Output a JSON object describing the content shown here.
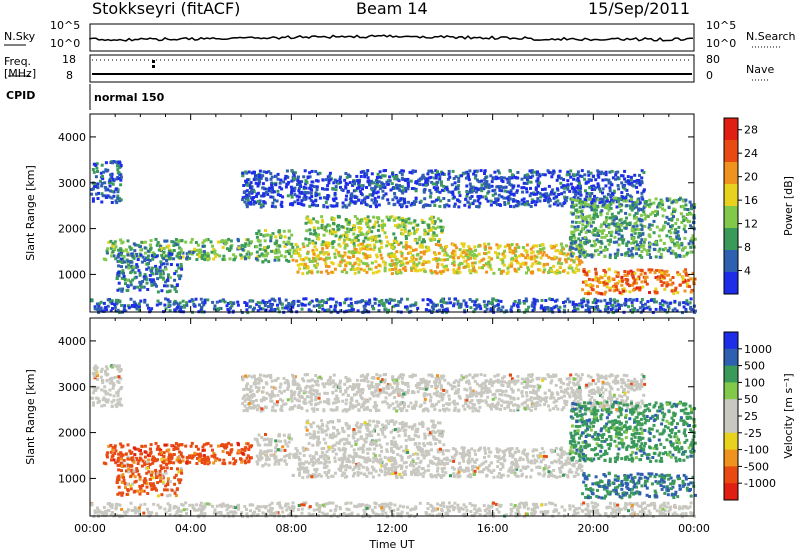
{
  "header": {
    "station": "Stokkseyri (fitACF)",
    "beam": "Beam 14",
    "date": "15/Sep/2011"
  },
  "strip": {
    "nsky_label": "N.Sky",
    "nsearch_label": "N.Search",
    "noise_ticks_left": [
      "10^5",
      "10^0"
    ],
    "noise_ticks_right": [
      "10^5",
      "10^0"
    ],
    "freq_label": "Freq.",
    "freq_unit": "[MHz]",
    "freq_ticks": [
      "18",
      "8"
    ],
    "nave_label": "Nave",
    "nave_ticks": [
      "80",
      "0"
    ],
    "cpid_label": "CPID",
    "cpid_value": "normal 150"
  },
  "chart_data": [
    {
      "type": "heatmap",
      "panel": "power",
      "ylabel": "Slant Range [km]",
      "xlabel": "Time UT",
      "ylim": [
        180,
        4500
      ],
      "xlim": [
        0,
        24
      ],
      "yticks": [
        "4000",
        "3000",
        "2000",
        "1000"
      ],
      "xticks": [
        "00:00",
        "04:00",
        "08:00",
        "12:00",
        "16:00",
        "20:00",
        "00:00"
      ],
      "colorbar_label": "Power [dB]",
      "colorbar_ticks": [
        "28",
        "24",
        "20",
        "16",
        "12",
        "8",
        "4"
      ],
      "colorbar_range": [
        0,
        30
      ],
      "colors": [
        "#1e2ee8",
        "#2e5fb0",
        "#3a9a5a",
        "#82c84a",
        "#e8d21e",
        "#f0921e",
        "#e84a12",
        "#e01e12"
      ],
      "regions": [
        {
          "t0": 0.5,
          "t1": 6.4,
          "r0": 1350,
          "r1": 1800,
          "p": 11
        },
        {
          "t0": 1.0,
          "t1": 3.6,
          "r0": 650,
          "r1": 1500,
          "p": 7
        },
        {
          "t0": 0.0,
          "t1": 1.2,
          "r0": 2600,
          "r1": 3500,
          "p": 5
        },
        {
          "t0": 6.5,
          "t1": 8.0,
          "r0": 1300,
          "r1": 2000,
          "p": 12
        },
        {
          "t0": 8.0,
          "t1": 19.5,
          "r0": 1050,
          "r1": 1700,
          "p": 17
        },
        {
          "t0": 8.5,
          "t1": 14.0,
          "r0": 1700,
          "r1": 2300,
          "p": 13
        },
        {
          "t0": 6.0,
          "t1": 22.0,
          "r0": 2500,
          "r1": 3300,
          "p": 4
        },
        {
          "t0": 19.0,
          "t1": 24.0,
          "r0": 1400,
          "r1": 2700,
          "p": 10
        },
        {
          "t0": 19.5,
          "t1": 24.0,
          "r0": 600,
          "r1": 1150,
          "p": 22
        },
        {
          "t0": 0.0,
          "t1": 24.0,
          "r0": 200,
          "r1": 500,
          "p": 5
        }
      ]
    },
    {
      "type": "heatmap",
      "panel": "velocity",
      "ylabel": "Slant Range [km]",
      "xlabel": "Time UT",
      "ylim": [
        180,
        4500
      ],
      "xlim": [
        0,
        24
      ],
      "yticks": [
        "4000",
        "3000",
        "2000",
        "1000"
      ],
      "xticks": [
        "00:00",
        "04:00",
        "08:00",
        "12:00",
        "16:00",
        "20:00",
        "00:00"
      ],
      "colorbar_label": "Velocity [m s⁻¹]",
      "colorbar_ticks": [
        "1000",
        "500",
        "100",
        "50",
        "25",
        "-25",
        "-100",
        "-500",
        "-1000"
      ],
      "colors": [
        "#e01e12",
        "#e84a12",
        "#f0921e",
        "#e8d21e",
        "#c8c8c0",
        "#c8c8c0",
        "#82c84a",
        "#3a9a5a",
        "#2e5fb0",
        "#1e2ee8"
      ],
      "regions": [
        {
          "t0": 0.5,
          "t1": 6.4,
          "r0": 1350,
          "r1": 1800,
          "v": -300
        },
        {
          "t0": 1.0,
          "t1": 3.6,
          "r0": 650,
          "r1": 1500,
          "v": -200
        },
        {
          "t0": 0.0,
          "t1": 1.2,
          "r0": 2600,
          "r1": 3500,
          "v": 0
        },
        {
          "t0": 6.5,
          "t1": 8.0,
          "r0": 1300,
          "r1": 2000,
          "v": 0
        },
        {
          "t0": 8.0,
          "t1": 19.5,
          "r0": 1050,
          "r1": 1700,
          "v": 0
        },
        {
          "t0": 8.5,
          "t1": 14.0,
          "r0": 1700,
          "r1": 2300,
          "v": 0
        },
        {
          "t0": 6.0,
          "t1": 22.0,
          "r0": 2500,
          "r1": 3300,
          "v": 0
        },
        {
          "t0": 19.0,
          "t1": 24.0,
          "r0": 1400,
          "r1": 2700,
          "v": 300
        },
        {
          "t0": 19.5,
          "t1": 24.0,
          "r0": 600,
          "r1": 1150,
          "v": 500
        },
        {
          "t0": 0.0,
          "t1": 24.0,
          "r0": 200,
          "r1": 500,
          "v": 0
        }
      ]
    }
  ]
}
